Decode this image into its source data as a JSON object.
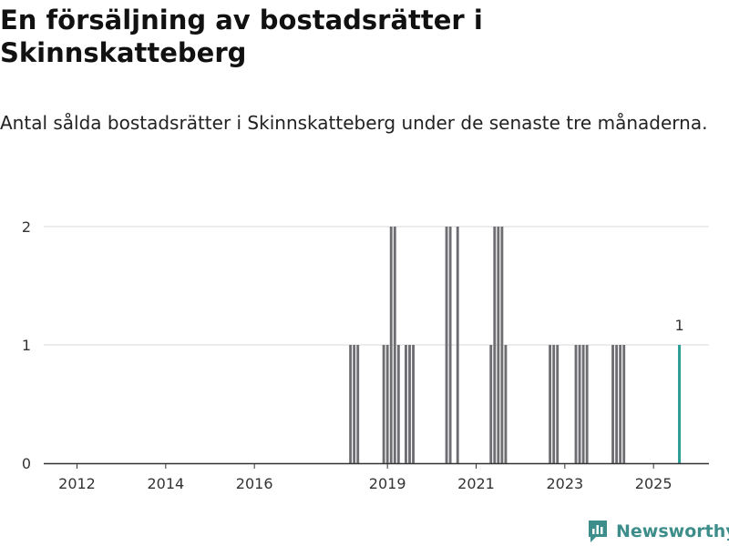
{
  "header": {
    "title": "En försäljning av bostadsrätter i Skinnskatteberg",
    "subtitle": "Antal sålda bostadsrätter i Skinnskatteberg under de senaste tre månaderna."
  },
  "brand": {
    "name": "Newsworthy",
    "icon": "newsworthy-logo-icon",
    "color": "#3d8d8a"
  },
  "chart_data": {
    "type": "bar",
    "title": "En försäljning av bostadsrätter i Skinnskatteberg",
    "subtitle": "Antal sålda bostadsrätter i Skinnskatteberg under de senaste tre månaderna.",
    "xlabel": "",
    "ylabel": "",
    "x_ticks": [
      "2012",
      "2014",
      "2016",
      "2019",
      "2021",
      "2023",
      "2025"
    ],
    "y_ticks": [
      0,
      1,
      2
    ],
    "ylim": [
      0,
      2
    ],
    "xlim": [
      "2011-04",
      "2026-04"
    ],
    "grid": true,
    "legend": "none",
    "bar_color": "#6e6e72",
    "highlight_color": "#2a9d93",
    "series": [
      {
        "values": [
          {
            "x": "2018-03",
            "y": 1
          },
          {
            "x": "2018-04",
            "y": 1
          },
          {
            "x": "2018-05",
            "y": 1
          },
          {
            "x": "2018-12",
            "y": 1
          },
          {
            "x": "2019-01",
            "y": 1
          },
          {
            "x": "2019-02",
            "y": 2
          },
          {
            "x": "2019-03",
            "y": 2
          },
          {
            "x": "2019-04",
            "y": 1
          },
          {
            "x": "2019-06",
            "y": 1
          },
          {
            "x": "2019-07",
            "y": 1
          },
          {
            "x": "2019-08",
            "y": 1
          },
          {
            "x": "2020-05",
            "y": 2
          },
          {
            "x": "2020-06",
            "y": 2
          },
          {
            "x": "2020-08",
            "y": 2
          },
          {
            "x": "2021-05",
            "y": 1
          },
          {
            "x": "2021-06",
            "y": 2
          },
          {
            "x": "2021-07",
            "y": 2
          },
          {
            "x": "2021-08",
            "y": 2
          },
          {
            "x": "2021-09",
            "y": 1
          },
          {
            "x": "2022-09",
            "y": 1
          },
          {
            "x": "2022-10",
            "y": 1
          },
          {
            "x": "2022-11",
            "y": 1
          },
          {
            "x": "2023-04",
            "y": 1
          },
          {
            "x": "2023-05",
            "y": 1
          },
          {
            "x": "2023-06",
            "y": 1
          },
          {
            "x": "2023-07",
            "y": 1
          },
          {
            "x": "2024-02",
            "y": 1
          },
          {
            "x": "2024-03",
            "y": 1
          },
          {
            "x": "2024-04",
            "y": 1
          },
          {
            "x": "2024-05",
            "y": 1
          }
        ]
      }
    ],
    "highlight": {
      "x": "2025-08",
      "y": 1,
      "label": "1"
    }
  }
}
